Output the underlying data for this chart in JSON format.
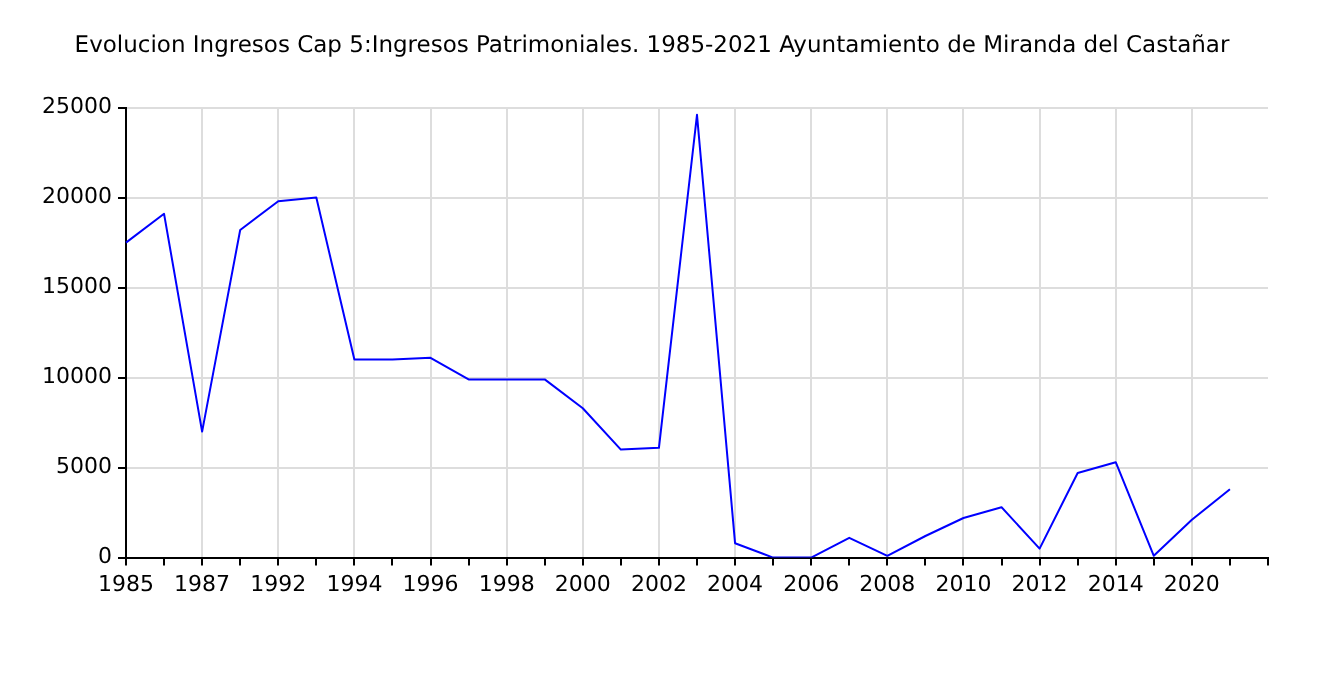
{
  "chart_data": {
    "type": "line",
    "title": "Evolucion Ingresos Cap 5:Ingresos Patrimoniales. 1985-2021 Ayuntamiento de Miranda del Castañar",
    "categories": [
      "1985",
      null,
      "1987",
      null,
      "1992",
      null,
      "1994",
      null,
      "1996",
      null,
      "1998",
      null,
      "2000",
      null,
      "2002",
      null,
      "2004",
      null,
      "2006",
      null,
      "2008",
      null,
      "2010",
      null,
      "2012",
      null,
      "2014",
      null,
      "2020",
      null,
      null
    ],
    "series": [
      {
        "color": "#0000ff",
        "values": [
          17500,
          19100,
          7000,
          18200,
          19800,
          20000,
          11000,
          11000,
          11100,
          9900,
          9900,
          9900,
          8300,
          6000,
          6100,
          24600,
          800,
          0,
          0,
          1100,
          100,
          1200,
          2200,
          2800,
          500,
          4700,
          5300,
          100,
          2100,
          3800,
          null
        ]
      }
    ],
    "ylim": [
      0,
      25000
    ],
    "yticks": [
      0,
      5000,
      10000,
      15000,
      20000,
      25000
    ],
    "grid": true,
    "legend": false,
    "marker": "none",
    "line_style": "solid"
  }
}
